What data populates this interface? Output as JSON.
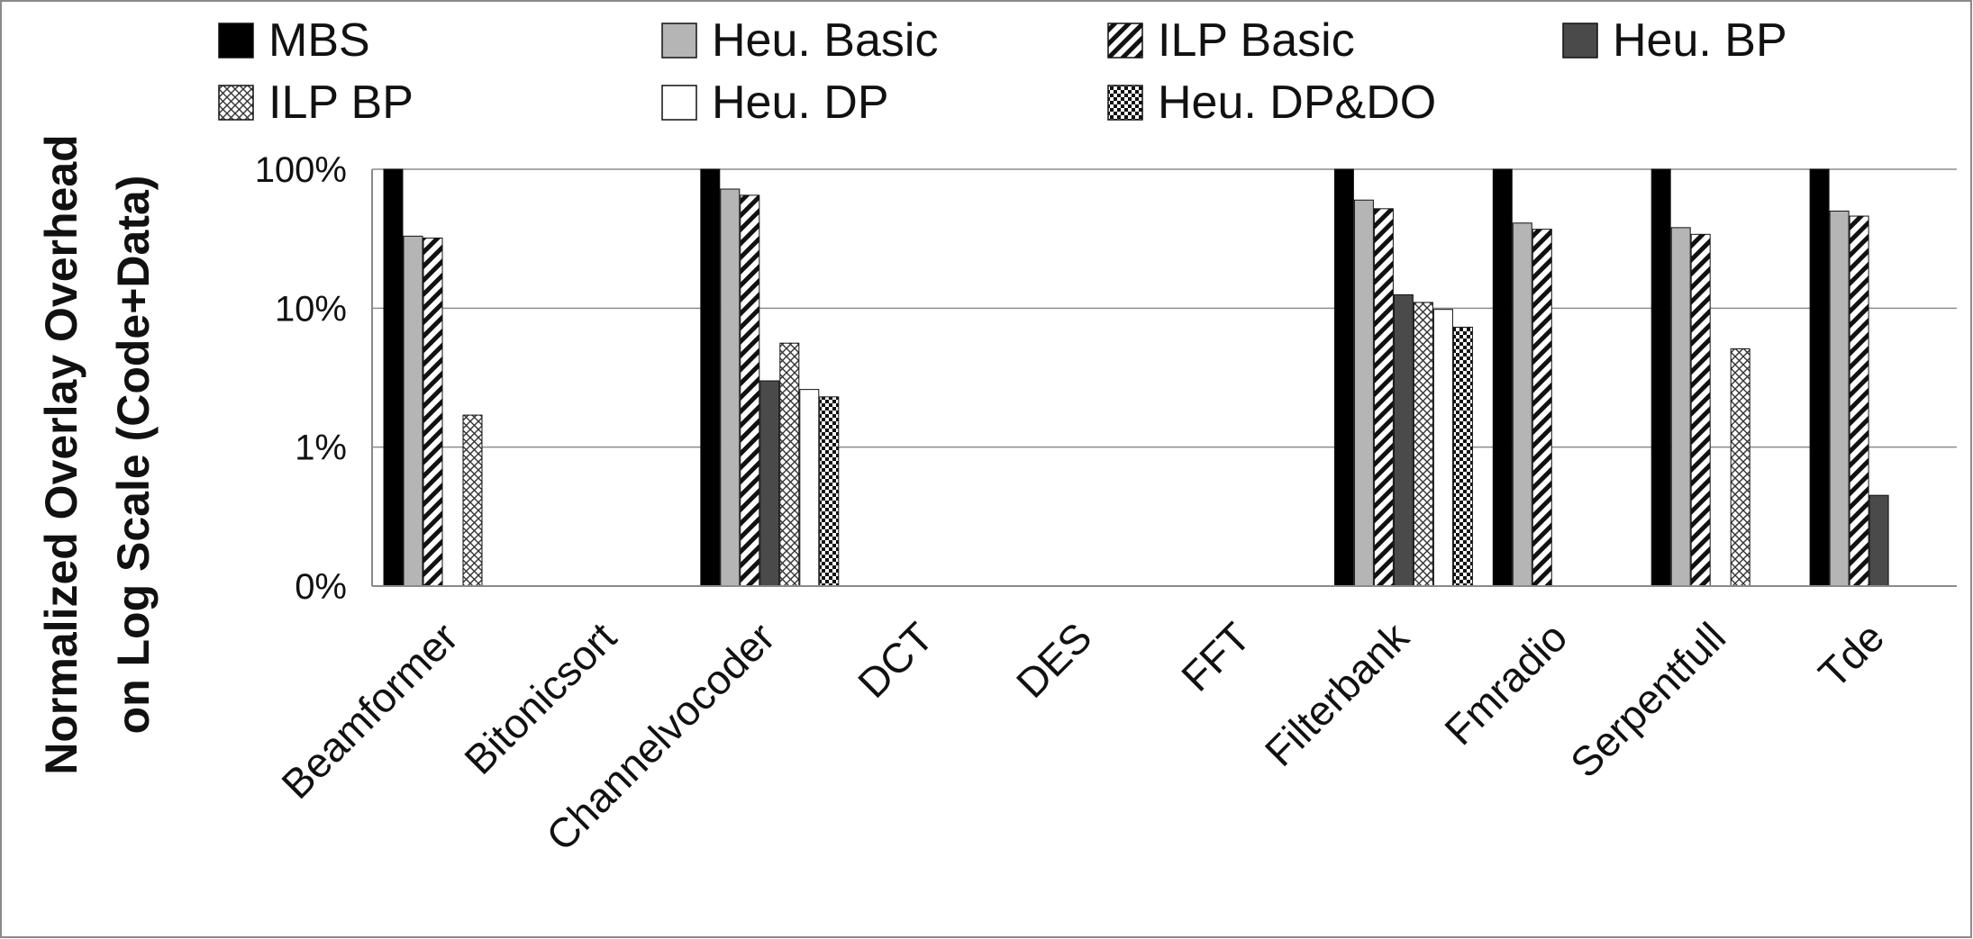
{
  "chart_data": {
    "type": "bar",
    "scale": "log",
    "title": "",
    "xlabel": "",
    "ylabel_lines": [
      "Normalized Overlay Overhead",
      "on Log Scale (Code+Data)"
    ],
    "ylim": [
      0.1,
      100
    ],
    "yticks": [
      {
        "value": 0.1,
        "label": "0%"
      },
      {
        "value": 1,
        "label": "1%"
      },
      {
        "value": 10,
        "label": "10%"
      },
      {
        "value": 100,
        "label": "100%"
      }
    ],
    "grid": true,
    "legend_position": "top",
    "categories": [
      "Beamformer",
      "Bitonicsort",
      "Channelvocoder",
      "DCT",
      "DES",
      "FFT",
      "Filterbank",
      "Fmradio",
      "Serpentfull",
      "Tde"
    ],
    "series": [
      {
        "name": "MBS",
        "style": "solid-black",
        "values": [
          100,
          null,
          100,
          null,
          null,
          null,
          100,
          100,
          100,
          100
        ]
      },
      {
        "name": "Heu. Basic",
        "style": "light-gray",
        "values": [
          33,
          null,
          72,
          null,
          null,
          null,
          60,
          41,
          38,
          50
        ]
      },
      {
        "name": "ILP Basic",
        "style": "diagonal-stripe",
        "values": [
          32,
          null,
          65,
          null,
          null,
          null,
          52,
          37,
          34,
          46
        ]
      },
      {
        "name": "Heu. BP",
        "style": "dark-gray",
        "values": [
          null,
          null,
          3,
          null,
          null,
          null,
          12.5,
          null,
          null,
          0.45
        ]
      },
      {
        "name": "ILP BP",
        "style": "crosshatch",
        "values": [
          1.7,
          null,
          5.6,
          null,
          null,
          null,
          11,
          null,
          5.1,
          null
        ]
      },
      {
        "name": "Heu. DP",
        "style": "white",
        "values": [
          null,
          null,
          2.6,
          null,
          null,
          null,
          9.8,
          null,
          null,
          null
        ]
      },
      {
        "name": "Heu. DP&DO",
        "style": "checker",
        "values": [
          null,
          null,
          2.3,
          null,
          null,
          null,
          7.3,
          null,
          null,
          null
        ]
      }
    ]
  }
}
